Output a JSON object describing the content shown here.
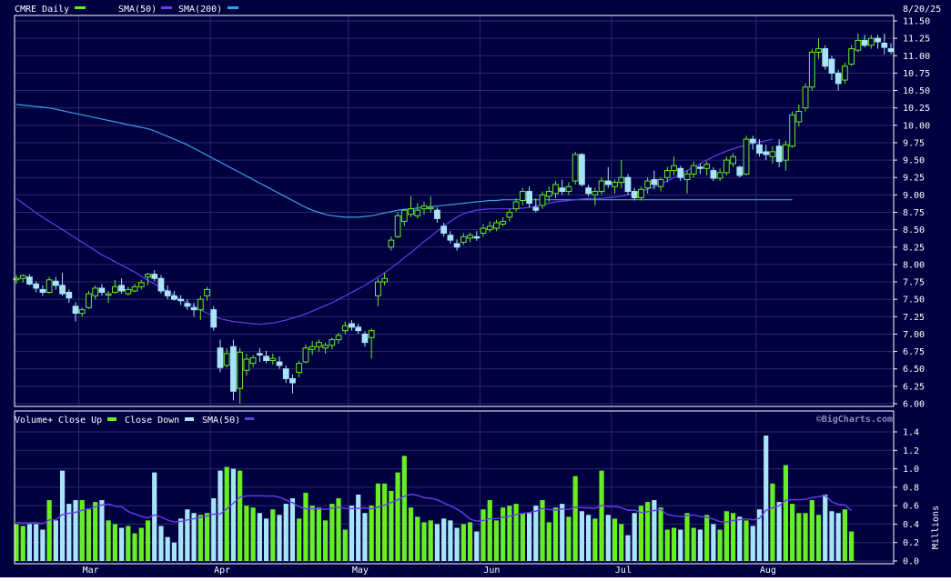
{
  "colors": {
    "background": "#000040",
    "frame": "#ffffff",
    "grid": "#2a2a70",
    "up": "#66ee22",
    "down": "#a8e4f8",
    "sma50": "#6a3cf0",
    "sma200": "#3aa0e8"
  },
  "price_panel": {
    "ticker_label": "CMRE Daily",
    "legend_sma50": "SMA(50)",
    "legend_sma200": "SMA(200)",
    "date_label": "8/20/25"
  },
  "volume_panel": {
    "legend_volume": "Volume+",
    "legend_close_up": "Close Up",
    "legend_close_down": "Close Down",
    "legend_sma": "SMA(50)",
    "watermark": "©BigCharts.com",
    "unit_label": "Millions"
  },
  "chart_data": [
    {
      "type": "candlestick",
      "title": "CMRE Daily",
      "y_range": [
        6.0,
        11.5
      ],
      "y_ticks": [
        "11.50",
        "11.25",
        "11.00",
        "10.75",
        "10.50",
        "10.25",
        "10.00",
        "9.75",
        "9.50",
        "9.25",
        "9.00",
        "8.75",
        "8.50",
        "8.25",
        "8.00",
        "7.75",
        "7.50",
        "7.25",
        "7.00",
        "6.75",
        "6.50",
        "6.25",
        "6.00"
      ],
      "x_month_labels": [
        {
          "label": "Mar",
          "index": 10
        },
        {
          "label": "Apr",
          "index": 30
        },
        {
          "label": "May",
          "index": 51
        },
        {
          "label": "Jun",
          "index": 71
        },
        {
          "label": "Jul",
          "index": 91
        },
        {
          "label": "Aug",
          "index": 113
        }
      ],
      "candles": [
        [
          7.78,
          7.85,
          7.72,
          7.8
        ],
        [
          7.8,
          7.86,
          7.74,
          7.84
        ],
        [
          7.82,
          7.86,
          7.7,
          7.72
        ],
        [
          7.72,
          7.76,
          7.6,
          7.66
        ],
        [
          7.64,
          7.7,
          7.55,
          7.6
        ],
        [
          7.6,
          7.82,
          7.58,
          7.78
        ],
        [
          7.76,
          7.82,
          7.64,
          7.7
        ],
        [
          7.7,
          7.88,
          7.55,
          7.58
        ],
        [
          7.6,
          7.64,
          7.45,
          7.52
        ],
        [
          7.4,
          7.46,
          7.18,
          7.3
        ],
        [
          7.3,
          7.38,
          7.25,
          7.35
        ],
        [
          7.38,
          7.62,
          7.36,
          7.58
        ],
        [
          7.55,
          7.7,
          7.5,
          7.66
        ],
        [
          7.66,
          7.72,
          7.55,
          7.6
        ],
        [
          7.56,
          7.62,
          7.45,
          7.58
        ],
        [
          7.6,
          7.78,
          7.58,
          7.68
        ],
        [
          7.7,
          7.8,
          7.58,
          7.62
        ],
        [
          7.58,
          7.68,
          7.55,
          7.64
        ],
        [
          7.62,
          7.72,
          7.6,
          7.68
        ],
        [
          7.68,
          7.78,
          7.64,
          7.74
        ],
        [
          7.82,
          7.88,
          7.7,
          7.86
        ],
        [
          7.86,
          7.92,
          7.76,
          7.8
        ],
        [
          7.8,
          7.85,
          7.58,
          7.62
        ],
        [
          7.62,
          7.7,
          7.5,
          7.55
        ],
        [
          7.55,
          7.62,
          7.48,
          7.5
        ],
        [
          7.5,
          7.56,
          7.42,
          7.48
        ],
        [
          7.44,
          7.5,
          7.35,
          7.4
        ],
        [
          7.38,
          7.45,
          7.25,
          7.35
        ],
        [
          7.35,
          7.55,
          7.2,
          7.5
        ],
        [
          7.55,
          7.68,
          7.48,
          7.64
        ],
        [
          7.35,
          7.4,
          7.05,
          7.1
        ],
        [
          6.8,
          6.92,
          6.45,
          6.52
        ],
        [
          6.55,
          6.8,
          6.52,
          6.72
        ],
        [
          6.82,
          6.92,
          6.05,
          6.18
        ],
        [
          6.22,
          6.8,
          6.0,
          6.74
        ],
        [
          6.48,
          6.72,
          6.4,
          6.64
        ],
        [
          6.58,
          6.7,
          6.52,
          6.66
        ],
        [
          6.72,
          6.8,
          6.6,
          6.7
        ],
        [
          6.68,
          6.76,
          6.58,
          6.62
        ],
        [
          6.62,
          6.72,
          6.56,
          6.65
        ],
        [
          6.6,
          6.68,
          6.5,
          6.55
        ],
        [
          6.5,
          6.55,
          6.3,
          6.36
        ],
        [
          6.36,
          6.42,
          6.15,
          6.3
        ],
        [
          6.45,
          6.62,
          6.38,
          6.58
        ],
        [
          6.6,
          6.85,
          6.58,
          6.8
        ],
        [
          6.78,
          6.9,
          6.7,
          6.82
        ],
        [
          6.82,
          6.92,
          6.75,
          6.88
        ],
        [
          6.8,
          6.88,
          6.72,
          6.84
        ],
        [
          6.84,
          6.95,
          6.78,
          6.92
        ],
        [
          6.92,
          7.02,
          6.86,
          6.98
        ],
        [
          7.05,
          7.18,
          7.0,
          7.12
        ],
        [
          7.15,
          7.2,
          7.05,
          7.1
        ],
        [
          7.1,
          7.15,
          7.0,
          7.05
        ],
        [
          7.0,
          7.04,
          6.82,
          6.88
        ],
        [
          6.95,
          7.08,
          6.65,
          7.05
        ],
        [
          7.55,
          7.8,
          7.4,
          7.75
        ],
        [
          7.75,
          7.88,
          7.7,
          7.8
        ],
        [
          8.25,
          8.4,
          8.2,
          8.35
        ],
        [
          8.4,
          8.75,
          8.38,
          8.7
        ],
        [
          8.62,
          8.8,
          8.55,
          8.78
        ],
        [
          8.72,
          8.98,
          8.68,
          8.8
        ],
        [
          8.7,
          8.88,
          8.66,
          8.78
        ],
        [
          8.8,
          8.9,
          8.72,
          8.84
        ],
        [
          8.8,
          8.98,
          8.75,
          8.82
        ],
        [
          8.78,
          8.82,
          8.6,
          8.66
        ],
        [
          8.55,
          8.6,
          8.4,
          8.45
        ],
        [
          8.42,
          8.48,
          8.3,
          8.35
        ],
        [
          8.3,
          8.36,
          8.2,
          8.25
        ],
        [
          8.32,
          8.45,
          8.28,
          8.4
        ],
        [
          8.38,
          8.46,
          8.32,
          8.42
        ],
        [
          8.4,
          8.48,
          8.34,
          8.38
        ],
        [
          8.45,
          8.58,
          8.4,
          8.52
        ],
        [
          8.5,
          8.62,
          8.46,
          8.55
        ],
        [
          8.52,
          8.64,
          8.48,
          8.6
        ],
        [
          8.58,
          8.68,
          8.55,
          8.62
        ],
        [
          8.68,
          8.8,
          8.62,
          8.75
        ],
        [
          8.8,
          8.95,
          8.76,
          8.9
        ],
        [
          8.92,
          9.1,
          8.85,
          9.05
        ],
        [
          9.05,
          9.12,
          8.82,
          8.88
        ],
        [
          8.82,
          8.95,
          8.75,
          8.78
        ],
        [
          8.85,
          9.05,
          8.8,
          9.0
        ],
        [
          8.98,
          9.12,
          8.9,
          9.05
        ],
        [
          9.02,
          9.2,
          8.95,
          9.15
        ],
        [
          9.1,
          9.22,
          9.0,
          9.05
        ],
        [
          9.05,
          9.18,
          9.0,
          9.12
        ],
        [
          9.2,
          9.62,
          9.15,
          9.58
        ],
        [
          9.58,
          9.6,
          9.12,
          9.15
        ],
        [
          9.1,
          9.15,
          8.98,
          9.02
        ],
        [
          9.0,
          9.1,
          8.85,
          9.05
        ],
        [
          9.05,
          9.25,
          9.0,
          9.2
        ],
        [
          9.2,
          9.4,
          9.1,
          9.15
        ],
        [
          9.12,
          9.22,
          9.02,
          9.18
        ],
        [
          9.18,
          9.5,
          9.1,
          9.25
        ],
        [
          9.25,
          9.3,
          9.0,
          9.05
        ],
        [
          9.05,
          9.1,
          8.92,
          8.96
        ],
        [
          8.96,
          9.12,
          8.92,
          9.08
        ],
        [
          9.1,
          9.25,
          9.02,
          9.2
        ],
        [
          9.22,
          9.35,
          9.08,
          9.15
        ],
        [
          9.12,
          9.25,
          9.05,
          9.22
        ],
        [
          9.25,
          9.4,
          9.18,
          9.35
        ],
        [
          9.35,
          9.55,
          9.28,
          9.42
        ],
        [
          9.38,
          9.42,
          9.2,
          9.25
        ],
        [
          9.22,
          9.35,
          9.02,
          9.3
        ],
        [
          9.3,
          9.48,
          9.25,
          9.42
        ],
        [
          9.4,
          9.45,
          9.3,
          9.38
        ],
        [
          9.38,
          9.48,
          9.28,
          9.44
        ],
        [
          9.35,
          9.4,
          9.2,
          9.24
        ],
        [
          9.24,
          9.38,
          9.2,
          9.32
        ],
        [
          9.32,
          9.55,
          9.28,
          9.5
        ],
        [
          9.45,
          9.6,
          9.4,
          9.55
        ],
        [
          9.4,
          9.42,
          9.25,
          9.28
        ],
        [
          9.3,
          9.85,
          9.28,
          9.8
        ],
        [
          9.8,
          9.85,
          9.65,
          9.75
        ],
        [
          9.72,
          9.8,
          9.55,
          9.6
        ],
        [
          9.62,
          9.72,
          9.5,
          9.58
        ],
        [
          9.55,
          9.7,
          9.45,
          9.62
        ],
        [
          9.7,
          9.8,
          9.4,
          9.48
        ],
        [
          9.5,
          9.78,
          9.35,
          9.72
        ],
        [
          9.7,
          10.2,
          9.68,
          10.15
        ],
        [
          10.05,
          10.3,
          9.98,
          10.2
        ],
        [
          10.25,
          10.6,
          10.2,
          10.55
        ],
        [
          10.55,
          11.1,
          10.5,
          11.05
        ],
        [
          11.05,
          11.25,
          10.95,
          11.1
        ],
        [
          11.1,
          11.15,
          10.8,
          10.85
        ],
        [
          10.95,
          11.0,
          10.65,
          10.75
        ],
        [
          10.75,
          10.8,
          10.5,
          10.6
        ],
        [
          10.65,
          10.9,
          10.6,
          10.85
        ],
        [
          10.88,
          11.15,
          10.85,
          11.1
        ],
        [
          11.08,
          11.32,
          11.05,
          11.22
        ],
        [
          11.22,
          11.3,
          11.12,
          11.15
        ],
        [
          11.15,
          11.3,
          11.1,
          11.25
        ],
        [
          11.25,
          11.3,
          11.1,
          11.2
        ],
        [
          11.18,
          11.32,
          11.02,
          11.12
        ],
        [
          11.1,
          11.18,
          11.02,
          11.06
        ]
      ],
      "sma50": [
        8.95,
        8.88,
        8.81,
        8.74,
        8.68,
        8.62,
        8.56,
        8.5,
        8.44,
        8.38,
        8.32,
        8.26,
        8.2,
        8.14,
        8.09,
        8.04,
        7.99,
        7.94,
        7.89,
        7.83,
        7.77,
        7.72,
        7.67,
        7.62,
        7.56,
        7.5,
        7.45,
        7.4,
        7.35,
        7.3,
        7.26,
        7.22,
        7.2,
        7.18,
        7.17,
        7.16,
        7.15,
        7.14,
        7.15,
        7.16,
        7.18,
        7.2,
        7.23,
        7.26,
        7.29,
        7.33,
        7.37,
        7.41,
        7.45,
        7.5,
        7.55,
        7.6,
        7.65,
        7.7,
        7.76,
        7.82,
        7.88,
        7.95,
        8.02,
        8.1,
        8.17,
        8.25,
        8.33,
        8.4,
        8.48,
        8.55,
        8.62,
        8.68,
        8.73,
        8.76,
        8.78,
        8.79,
        8.8,
        8.8,
        8.8,
        8.8,
        8.8,
        8.81,
        8.82,
        8.84,
        8.86,
        8.88,
        8.9,
        8.91,
        8.92,
        8.93,
        8.94,
        8.95,
        8.95,
        8.95,
        8.96,
        8.97,
        8.98,
        9.0,
        9.02,
        9.05,
        9.08,
        9.12,
        9.16,
        9.2,
        9.25,
        9.3,
        9.35,
        9.4,
        9.45,
        9.5,
        9.55,
        9.59,
        9.63,
        9.66,
        9.69,
        9.72,
        9.74,
        9.76,
        9.78,
        9.8
      ],
      "sma200": [
        10.3,
        10.29,
        10.28,
        10.27,
        10.26,
        10.25,
        10.23,
        10.21,
        10.19,
        10.17,
        10.15,
        10.13,
        10.11,
        10.09,
        10.07,
        10.05,
        10.03,
        10.01,
        9.99,
        9.97,
        9.95,
        9.92,
        9.88,
        9.84,
        9.8,
        9.76,
        9.72,
        9.67,
        9.62,
        9.57,
        9.52,
        9.47,
        9.42,
        9.37,
        9.32,
        9.27,
        9.22,
        9.17,
        9.12,
        9.07,
        9.02,
        8.97,
        8.92,
        8.87,
        8.82,
        8.78,
        8.75,
        8.72,
        8.7,
        8.69,
        8.68,
        8.68,
        8.68,
        8.69,
        8.7,
        8.72,
        8.74,
        8.76,
        8.78,
        8.79,
        8.8,
        8.81,
        8.82,
        8.83,
        8.84,
        8.85,
        8.86,
        8.87,
        8.88,
        8.89,
        8.9,
        8.91,
        8.92,
        8.92,
        8.93,
        8.93,
        8.93,
        8.93,
        8.93,
        8.93,
        8.93,
        8.93,
        8.93,
        8.93,
        8.93,
        8.93,
        8.93,
        8.93,
        8.93,
        8.93,
        8.93,
        8.93,
        8.93,
        8.93,
        8.93,
        8.93,
        8.93,
        8.93,
        8.93,
        8.93,
        8.93,
        8.93,
        8.93,
        8.93,
        8.93,
        8.93,
        8.93,
        8.93,
        8.93,
        8.93,
        8.93,
        8.93,
        8.93,
        8.93,
        8.93,
        8.93,
        8.93,
        8.93,
        8.93
      ]
    },
    {
      "type": "bar",
      "title": "Volume+",
      "ylabel": "Millions",
      "y_range": [
        0,
        1.5
      ],
      "y_ticks": [
        "1.4",
        "1.2",
        "1.0",
        "0.8",
        "0.6",
        "0.4",
        "0.2",
        "0.0"
      ],
      "volumes": [
        0.4,
        0.38,
        0.4,
        0.4,
        0.34,
        0.66,
        0.44,
        0.98,
        0.62,
        0.66,
        0.66,
        0.56,
        0.64,
        0.66,
        0.44,
        0.4,
        0.36,
        0.38,
        0.3,
        0.36,
        0.44,
        0.96,
        0.38,
        0.26,
        0.2,
        0.46,
        0.56,
        0.52,
        0.5,
        0.52,
        0.68,
        0.98,
        1.02,
        1.0,
        0.98,
        0.6,
        0.58,
        0.52,
        0.46,
        0.56,
        0.5,
        0.62,
        0.68,
        0.46,
        0.74,
        0.6,
        0.58,
        0.44,
        0.62,
        0.68,
        0.34,
        0.6,
        0.72,
        0.52,
        0.6,
        0.84,
        0.84,
        0.76,
        0.96,
        1.14,
        0.58,
        0.48,
        0.42,
        0.44,
        0.4,
        0.46,
        0.44,
        0.36,
        0.4,
        0.42,
        0.32,
        0.56,
        0.66,
        0.44,
        0.58,
        0.6,
        0.62,
        0.52,
        0.52,
        0.6,
        0.66,
        0.42,
        0.58,
        0.62,
        0.48,
        0.92,
        0.54,
        0.5,
        0.46,
        0.98,
        0.5,
        0.46,
        0.4,
        0.28,
        0.52,
        0.6,
        0.64,
        0.66,
        0.58,
        0.34,
        0.36,
        0.34,
        0.52,
        0.36,
        0.34,
        0.5,
        0.4,
        0.34,
        0.54,
        0.52,
        0.48,
        0.44,
        0.38,
        0.56,
        1.36,
        0.84,
        0.64,
        1.04,
        0.62,
        0.52,
        0.52,
        0.66,
        0.5,
        0.72,
        0.54,
        0.52,
        0.56,
        0.32
      ]
    }
  ]
}
